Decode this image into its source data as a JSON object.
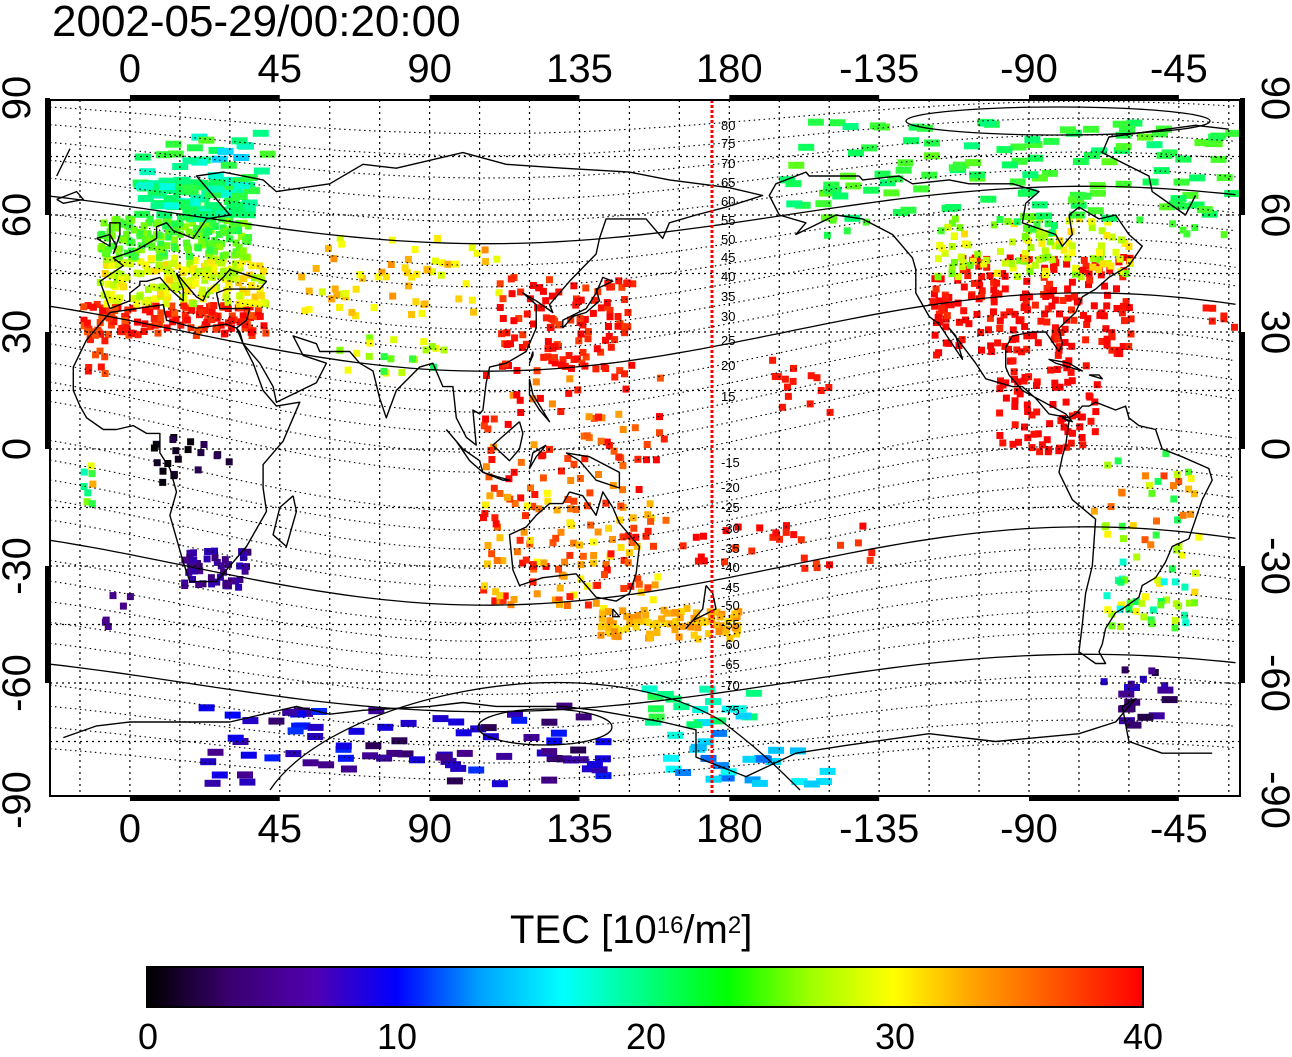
{
  "title": "2002-05-29/00:20:00",
  "colorbar": {
    "label_main": "TEC  [10",
    "label_exp": "16",
    "label_unit": "/m",
    "label_exp2": "2",
    "label_close": "]",
    "ticks": [
      "0",
      "10",
      "20",
      "30",
      "40"
    ],
    "colors": [
      "#000000",
      "#3a0070",
      "#5000b0",
      "#0000ff",
      "#00a0ff",
      "#00ffff",
      "#00ff80",
      "#00ff00",
      "#a0ff00",
      "#ffff00",
      "#ffa000",
      "#ff5000",
      "#ff0000"
    ]
  },
  "axes": {
    "x_ticks": [
      "0",
      "45",
      "90",
      "135",
      "180",
      "-135",
      "-90",
      "-45"
    ],
    "y_ticks": [
      "90",
      "60",
      "30",
      "0",
      "-30",
      "-60",
      "-90"
    ]
  },
  "magnetic_lat_labels": [
    "80",
    "75",
    "70",
    "65",
    "60",
    "55",
    "50",
    "45",
    "40",
    "35",
    "30",
    "25",
    "20",
    "15",
    "-15",
    "-20",
    "-25",
    "-30",
    "-35",
    "-40",
    "-45",
    "-50",
    "-55",
    "-60",
    "-65",
    "-70",
    "-75"
  ],
  "colors": {
    "meridian": "#ff0000",
    "coast": "#000000",
    "background": "#ffffff"
  }
}
